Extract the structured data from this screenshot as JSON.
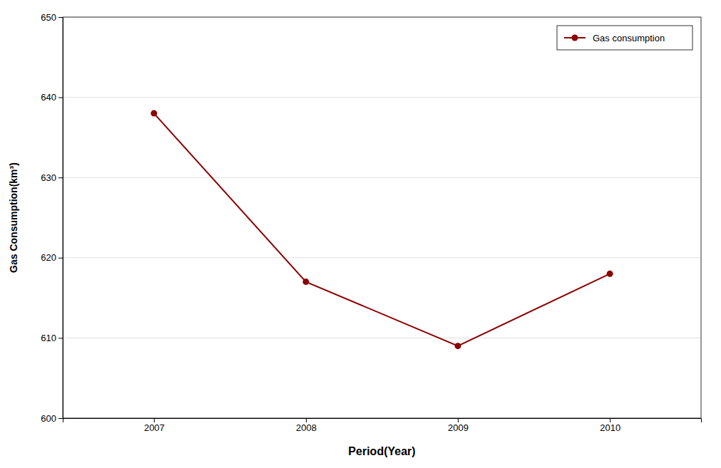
{
  "chart_data": {
    "type": "line",
    "xlabel": "Period(Year)",
    "ylabel": "Gas Consumption(km³)",
    "x": [
      2007,
      2008,
      2009,
      2010
    ],
    "series": [
      {
        "name": "Gas consumption",
        "color": "#8B0000",
        "marker": "circle",
        "values": [
          638,
          617,
          609,
          618
        ]
      }
    ],
    "xlim": [
      2006.4,
      2010.6
    ],
    "xticks": [
      2007,
      2008,
      2009,
      2010
    ],
    "ylim": [
      600,
      650
    ],
    "yticks": [
      600,
      610,
      620,
      630,
      640,
      650
    ],
    "grid": "y",
    "legend": "upper right"
  }
}
